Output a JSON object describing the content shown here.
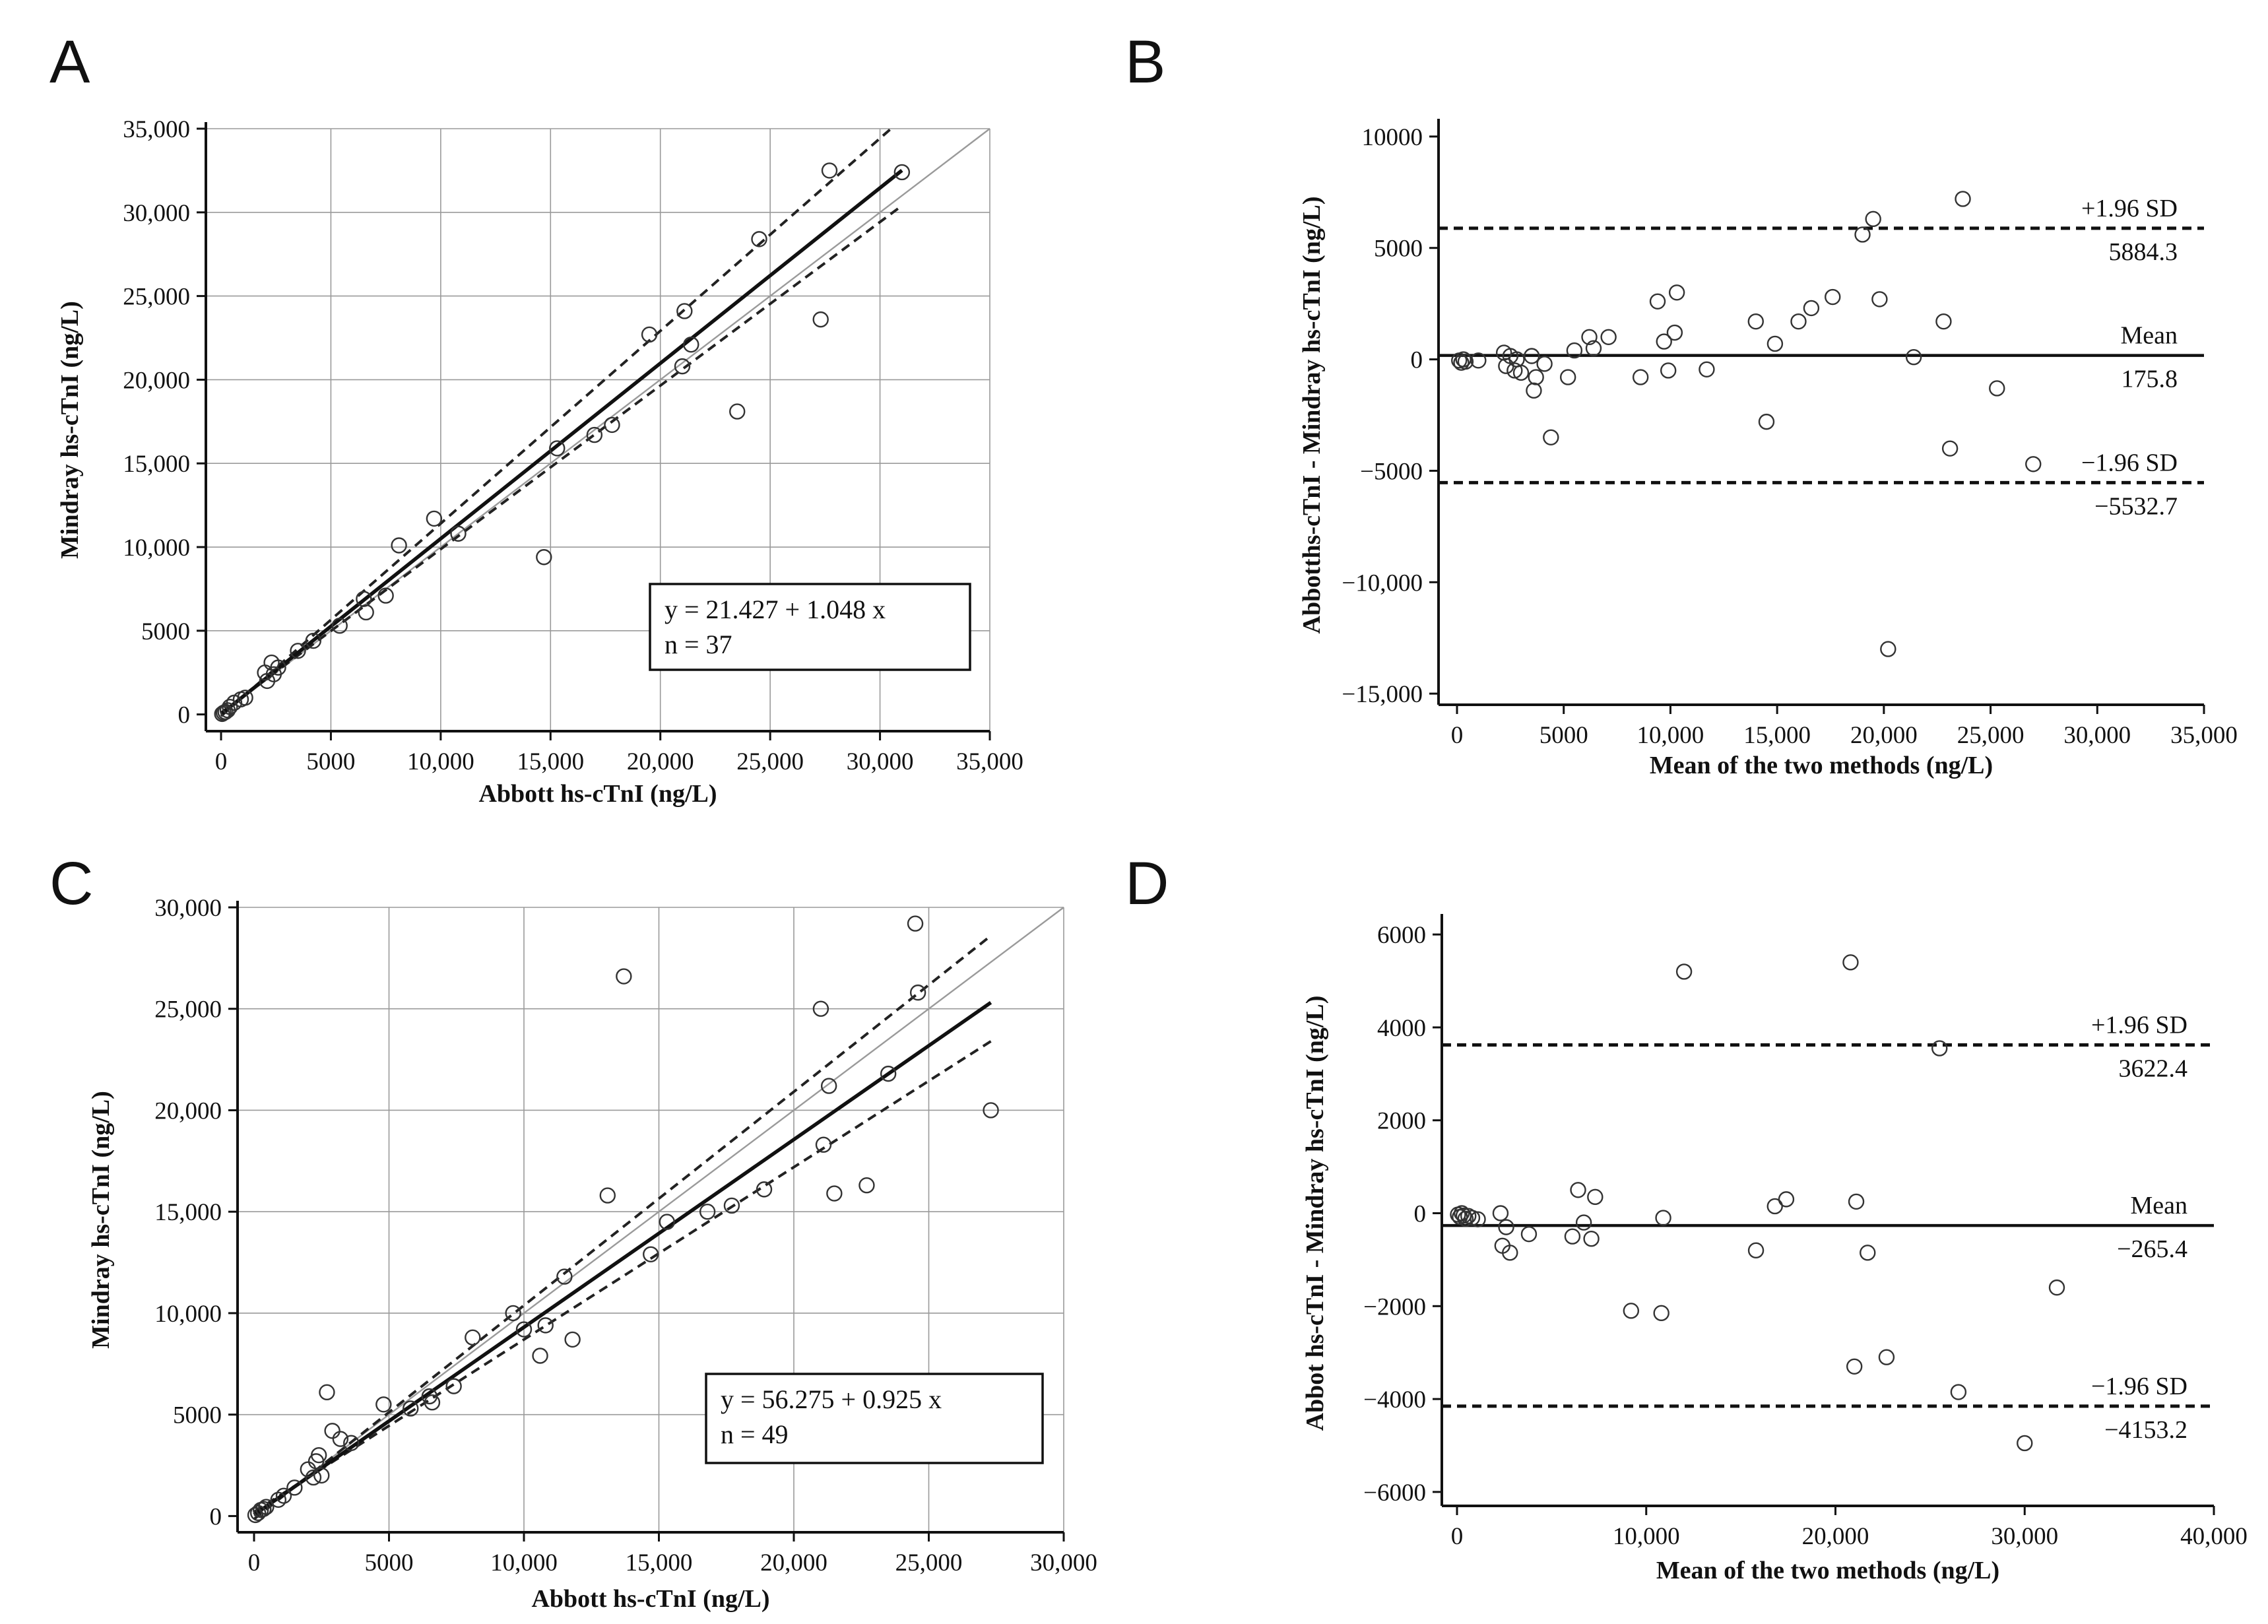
{
  "chart_data": [
    {
      "panel": "A",
      "type": "scatter",
      "xlabel": "Abbott hs-cTnI (ng/L)",
      "ylabel": "Mindray hs-cTnI (ng/L)",
      "xlim": [
        -500,
        35000
      ],
      "ylim": [
        -1000,
        35000
      ],
      "xticks": [
        0,
        5000,
        10000,
        15000,
        20000,
        25000,
        30000,
        35000
      ],
      "yticks": [
        0,
        5000,
        10000,
        15000,
        20000,
        25000,
        30000,
        35000
      ],
      "xtick_labels": [
        "0",
        "5000",
        "10,000",
        "15,000",
        "20,000",
        "25,000",
        "30,000",
        "35,000"
      ],
      "ytick_labels": [
        "0",
        "5000",
        "10,000",
        "15,000",
        "20,000",
        "25,000",
        "30,000",
        "35,000"
      ],
      "grid": true,
      "equation": "y = 21.427  +  1.048  x",
      "n_label": "n = 37",
      "regression": {
        "intercept": 21.427,
        "slope": 1.048,
        "x_range": [
          0,
          31000
        ]
      },
      "ci_lines": [
        {
          "p1": [
            0,
            -100
          ],
          "p2": [
            30500,
            35000
          ]
        },
        {
          "p1": [
            0,
            100
          ],
          "p2": [
            31000,
            30400
          ]
        }
      ],
      "identity_line": {
        "x_range": [
          0,
          35000
        ]
      },
      "points": [
        [
          50,
          30
        ],
        [
          120,
          100
        ],
        [
          200,
          150
        ],
        [
          300,
          250
        ],
        [
          400,
          450
        ],
        [
          600,
          700
        ],
        [
          900,
          900
        ],
        [
          1100,
          1000
        ],
        [
          2000,
          2500
        ],
        [
          2100,
          2000
        ],
        [
          2300,
          3100
        ],
        [
          2400,
          2400
        ],
        [
          2600,
          2800
        ],
        [
          3500,
          3800
        ],
        [
          4200,
          4400
        ],
        [
          5400,
          5300
        ],
        [
          6500,
          6900
        ],
        [
          6600,
          6100
        ],
        [
          7500,
          7100
        ],
        [
          8100,
          10100
        ],
        [
          9700,
          11700
        ],
        [
          10800,
          10800
        ],
        [
          14700,
          9400
        ],
        [
          15300,
          15900
        ],
        [
          17000,
          16700
        ],
        [
          17800,
          17300
        ],
        [
          19500,
          22700
        ],
        [
          21000,
          20800
        ],
        [
          21100,
          24100
        ],
        [
          21400,
          22100
        ],
        [
          23500,
          18100
        ],
        [
          24500,
          28400
        ],
        [
          27300,
          23600
        ],
        [
          27700,
          32500
        ],
        [
          31000,
          32400
        ]
      ]
    },
    {
      "panel": "B",
      "type": "scatter",
      "xlabel": "Mean of the two methods (ng/L)",
      "ylabel": "Abbotths-cTnI - Mindray hs-cTnI (ng/L)",
      "xlim": [
        -500,
        35000
      ],
      "ylim": [
        -15500,
        10500
      ],
      "xticks": [
        0,
        5000,
        10000,
        15000,
        20000,
        25000,
        30000,
        35000
      ],
      "yticks": [
        -15000,
        -10000,
        -5000,
        0,
        5000,
        10000
      ],
      "xtick_labels": [
        "0",
        "5000",
        "10,000",
        "15,000",
        "20,000",
        "25,000",
        "30,000",
        "35,000"
      ],
      "ytick_labels": [
        "−15,000",
        "−10,000",
        "−5000",
        "0",
        "5000",
        "10000"
      ],
      "grid": false,
      "mean": 175.8,
      "upper_loa": 5884.3,
      "lower_loa": -5532.7,
      "mean_label": "Mean",
      "mean_value_label": "175.8",
      "upper_label": "+1.96 SD",
      "upper_value_label": "5884.3",
      "lower_label": "−1.96 SD",
      "lower_value_label": "−5532.7",
      "points": [
        [
          100,
          -50
        ],
        [
          200,
          -150
        ],
        [
          300,
          0
        ],
        [
          400,
          -100
        ],
        [
          1000,
          -50
        ],
        [
          2200,
          300
        ],
        [
          2300,
          -300
        ],
        [
          2500,
          150
        ],
        [
          2700,
          -500
        ],
        [
          2800,
          0
        ],
        [
          3000,
          -600
        ],
        [
          3500,
          150
        ],
        [
          3600,
          -1400
        ],
        [
          3700,
          -800
        ],
        [
          4100,
          -200
        ],
        [
          4400,
          -3500
        ],
        [
          5200,
          -800
        ],
        [
          5500,
          400
        ],
        [
          6200,
          1000
        ],
        [
          6400,
          500
        ],
        [
          7100,
          1000
        ],
        [
          8600,
          -800
        ],
        [
          9400,
          2600
        ],
        [
          9700,
          800
        ],
        [
          9900,
          -500
        ],
        [
          10200,
          1200
        ],
        [
          10300,
          3000
        ],
        [
          11700,
          -450
        ],
        [
          14000,
          1700
        ],
        [
          14500,
          -2800
        ],
        [
          14900,
          700
        ],
        [
          16000,
          1700
        ],
        [
          16600,
          2300
        ],
        [
          17600,
          2800
        ],
        [
          19000,
          5600
        ],
        [
          19500,
          6300
        ],
        [
          19800,
          2700
        ],
        [
          20200,
          -13000
        ],
        [
          21400,
          100
        ],
        [
          22800,
          1700
        ],
        [
          23100,
          -4000
        ],
        [
          23700,
          7200
        ],
        [
          25300,
          -1300
        ],
        [
          27000,
          -4700
        ]
      ]
    },
    {
      "panel": "C",
      "type": "scatter",
      "xlabel": "Abbott hs-cTnI (ng/L)",
      "ylabel": "Mindray hs-cTnI (ng/L)",
      "xlim": [
        -700,
        30000
      ],
      "ylim": [
        -800,
        30000
      ],
      "xticks": [
        0,
        5000,
        10000,
        15000,
        20000,
        25000,
        30000
      ],
      "yticks": [
        0,
        5000,
        10000,
        15000,
        20000,
        25000,
        30000
      ],
      "xtick_labels": [
        "0",
        "5000",
        "10,000",
        "15,000",
        "20,000",
        "25,000",
        "30,000"
      ],
      "ytick_labels": [
        "0",
        "5000",
        "10,000",
        "15,000",
        "20,000",
        "25,000",
        "30,000"
      ],
      "grid": true,
      "equation": "y = 56.275  +  0.925  x",
      "n_label": "n = 49",
      "regression": {
        "intercept": 56.275,
        "slope": 0.925,
        "x_range": [
          0,
          27300
        ]
      },
      "ci_lines": [
        {
          "p1": [
            0,
            -150
          ],
          "p2": [
            27300,
            28600
          ]
        },
        {
          "p1": [
            0,
            200
          ],
          "p2": [
            27300,
            23400
          ]
        }
      ],
      "identity_line": {
        "x_range": [
          0,
          30000
        ]
      },
      "points": [
        [
          50,
          50
        ],
        [
          150,
          150
        ],
        [
          250,
          300
        ],
        [
          350,
          350
        ],
        [
          450,
          450
        ],
        [
          900,
          800
        ],
        [
          1100,
          1000
        ],
        [
          1500,
          1400
        ],
        [
          2000,
          2300
        ],
        [
          2200,
          1900
        ],
        [
          2300,
          2700
        ],
        [
          2400,
          3000
        ],
        [
          2500,
          2000
        ],
        [
          2700,
          6100
        ],
        [
          2900,
          4200
        ],
        [
          3200,
          3800
        ],
        [
          3600,
          3600
        ],
        [
          4800,
          5500
        ],
        [
          5800,
          5300
        ],
        [
          6500,
          5900
        ],
        [
          6600,
          5600
        ],
        [
          7400,
          6400
        ],
        [
          8100,
          8800
        ],
        [
          9600,
          10000
        ],
        [
          10000,
          9200
        ],
        [
          10600,
          7900
        ],
        [
          10800,
          9400
        ],
        [
          11500,
          11800
        ],
        [
          11800,
          8700
        ],
        [
          13100,
          15800
        ],
        [
          13700,
          26600
        ],
        [
          14700,
          12900
        ],
        [
          15300,
          14500
        ],
        [
          16800,
          15000
        ],
        [
          17700,
          15300
        ],
        [
          18900,
          16100
        ],
        [
          21000,
          25000
        ],
        [
          21100,
          18300
        ],
        [
          21300,
          21200
        ],
        [
          21500,
          15900
        ],
        [
          22700,
          16300
        ],
        [
          23500,
          21800
        ],
        [
          24500,
          29200
        ],
        [
          24600,
          25800
        ],
        [
          27300,
          20000
        ]
      ]
    },
    {
      "panel": "D",
      "type": "scatter",
      "xlabel": "Mean of the two methods (ng/L)",
      "ylabel": "Abbot hs-cTnI - Mindray hs-cTnI (ng/L)",
      "xlim": [
        -500,
        40000
      ],
      "ylim": [
        -6300,
        6300
      ],
      "xticks": [
        0,
        10000,
        20000,
        30000,
        40000
      ],
      "yticks": [
        -6000,
        -4000,
        -2000,
        0,
        2000,
        4000,
        6000
      ],
      "xtick_labels": [
        "0",
        "10,000",
        "20,000",
        "30,000",
        "40,000"
      ],
      "ytick_labels": [
        "−6000",
        "−4000",
        "−2000",
        "0",
        "2000",
        "4000",
        "6000"
      ],
      "grid": false,
      "mean": -265.4,
      "upper_loa": 3622.4,
      "lower_loa": -4153.2,
      "mean_label": "Mean",
      "mean_value_label": "−265.4",
      "upper_label": "+1.96 SD",
      "upper_value_label": "3622.4",
      "lower_label": "−1.96 SD",
      "lower_value_label": "−4153.2",
      "points": [
        [
          50,
          -30
        ],
        [
          150,
          -80
        ],
        [
          250,
          0
        ],
        [
          350,
          -50
        ],
        [
          450,
          -120
        ],
        [
          600,
          -60
        ],
        [
          800,
          -100
        ],
        [
          1100,
          -130
        ],
        [
          2300,
          0
        ],
        [
          2400,
          -700
        ],
        [
          2600,
          -300
        ],
        [
          2800,
          -850
        ],
        [
          3800,
          -450
        ],
        [
          6100,
          -500
        ],
        [
          6400,
          500
        ],
        [
          6700,
          -200
        ],
        [
          7100,
          -550
        ],
        [
          7300,
          350
        ],
        [
          9200,
          -2100
        ],
        [
          10800,
          -2150
        ],
        [
          10900,
          -100
        ],
        [
          12000,
          5200
        ],
        [
          15800,
          -800
        ],
        [
          16800,
          150
        ],
        [
          17400,
          300
        ],
        [
          20800,
          5400
        ],
        [
          21000,
          -3300
        ],
        [
          21100,
          250
        ],
        [
          21700,
          -850
        ],
        [
          22700,
          -3100
        ],
        [
          25500,
          3550
        ],
        [
          26500,
          -3850
        ],
        [
          30000,
          -4950
        ],
        [
          31700,
          -1600
        ]
      ]
    }
  ]
}
